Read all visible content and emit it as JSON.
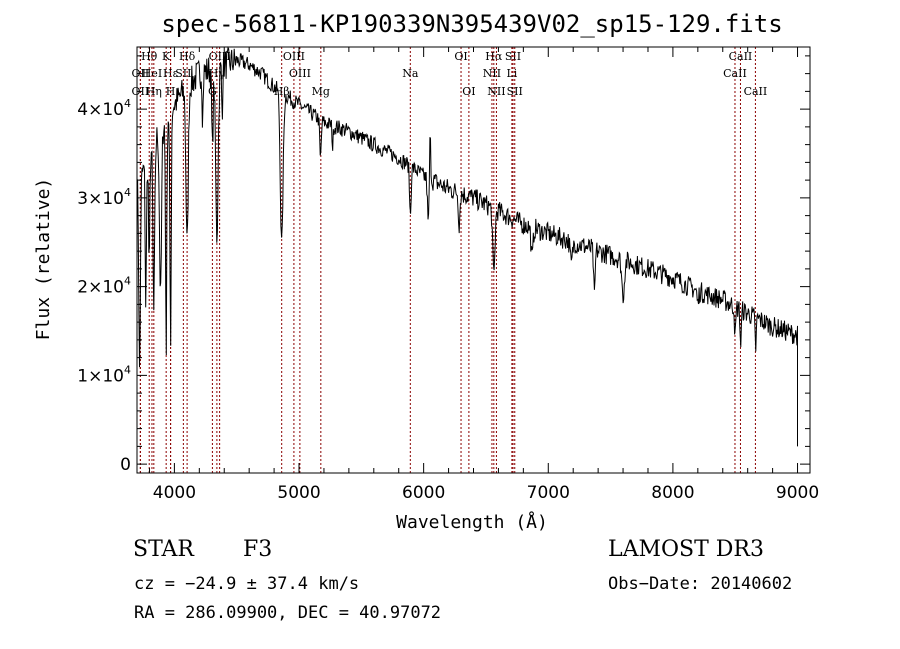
{
  "chart_data": {
    "type": "line",
    "title": "spec-56811-KP190339N395439V02_sp15-129.fits",
    "xlabel": "Wavelength (Å)",
    "ylabel": "Flux (relative)",
    "xlim": [
      3700,
      9100
    ],
    "ylim": [
      -1000,
      47000
    ],
    "x_ticks": [
      {
        "value": 4000,
        "label": "4000"
      },
      {
        "value": 5000,
        "label": "5000"
      },
      {
        "value": 6000,
        "label": "6000"
      },
      {
        "value": 7000,
        "label": "7000"
      },
      {
        "value": 8000,
        "label": "8000"
      },
      {
        "value": 9000,
        "label": "9000"
      }
    ],
    "y_ticks": [
      {
        "value": 0,
        "mant": "0",
        "exp": ""
      },
      {
        "value": 10000,
        "mant": "1×10",
        "exp": "4"
      },
      {
        "value": 20000,
        "mant": "2×10",
        "exp": "4"
      },
      {
        "value": 30000,
        "mant": "3×10",
        "exp": "4"
      },
      {
        "value": 40000,
        "mant": "4×10",
        "exp": "4"
      }
    ],
    "continuum": [
      [
        3700,
        31000
      ],
      [
        3800,
        35000
      ],
      [
        3900,
        38000
      ],
      [
        4000,
        40500
      ],
      [
        4100,
        42500
      ],
      [
        4200,
        44000
      ],
      [
        4300,
        44500
      ],
      [
        4400,
        45000
      ],
      [
        4500,
        45500
      ],
      [
        4600,
        45000
      ],
      [
        4700,
        44000
      ],
      [
        4800,
        42500
      ],
      [
        4900,
        41500
      ],
      [
        5000,
        40500
      ],
      [
        5200,
        38500
      ],
      [
        5400,
        37500
      ],
      [
        5600,
        36000
      ],
      [
        5800,
        34500
      ],
      [
        6000,
        32500
      ],
      [
        6200,
        31000
      ],
      [
        6400,
        30000
      ],
      [
        6600,
        28500
      ],
      [
        6800,
        27000
      ],
      [
        7000,
        26000
      ],
      [
        7200,
        25000
      ],
      [
        7400,
        24000
      ],
      [
        7600,
        23000
      ],
      [
        7800,
        22000
      ],
      [
        8000,
        21000
      ],
      [
        8200,
        19500
      ],
      [
        8400,
        18500
      ],
      [
        8600,
        17000
      ],
      [
        8800,
        15500
      ],
      [
        9000,
        14500
      ]
    ],
    "absorption_features": [
      {
        "center": 3721,
        "width": 6,
        "depth": 22000
      },
      {
        "center": 3771,
        "width": 5,
        "depth": 16000
      },
      {
        "center": 3798,
        "width": 5,
        "depth": 13000
      },
      {
        "center": 3835,
        "width": 7,
        "depth": 19000
      },
      {
        "center": 3889,
        "width": 8,
        "depth": 19000
      },
      {
        "center": 3934,
        "width": 5,
        "depth": 26000
      },
      {
        "center": 3969,
        "width": 5,
        "depth": 27000
      },
      {
        "center": 4102,
        "width": 9,
        "depth": 18000
      },
      {
        "center": 4227,
        "width": 4,
        "depth": 5000
      },
      {
        "center": 4305,
        "width": 6,
        "depth": 9000
      },
      {
        "center": 4341,
        "width": 10,
        "depth": 19000
      },
      {
        "center": 4383,
        "width": 4,
        "depth": 5000
      },
      {
        "center": 4861,
        "width": 11,
        "depth": 17000
      },
      {
        "center": 5172,
        "width": 6,
        "depth": 4500
      },
      {
        "center": 5270,
        "width": 4,
        "depth": 2500
      },
      {
        "center": 5893,
        "width": 6,
        "depth": 5500
      },
      {
        "center": 6040,
        "width": 8,
        "depth": 6500
      },
      {
        "center": 6285,
        "width": 6,
        "depth": 3500
      },
      {
        "center": 6563,
        "width": 9,
        "depth": 7500
      },
      {
        "center": 6870,
        "width": 8,
        "depth": 3500
      },
      {
        "center": 7185,
        "width": 9,
        "depth": 2500
      },
      {
        "center": 7370,
        "width": 6,
        "depth": 5500
      },
      {
        "center": 7600,
        "width": 10,
        "depth": 4000
      },
      {
        "center": 8200,
        "width": 6,
        "depth": 1500
      },
      {
        "center": 8500,
        "width": 5,
        "depth": 3500
      },
      {
        "center": 8544,
        "width": 5,
        "depth": 4000
      },
      {
        "center": 8664,
        "width": 5,
        "depth": 3500
      }
    ],
    "emission_features": [
      {
        "center": 6050,
        "width": 6,
        "height": 7000
      }
    ],
    "noise": {
      "seed": 7,
      "amplitude": 900
    },
    "series": [
      {
        "name": "flux",
        "x_range": [
          3700,
          9000
        ],
        "step": 5,
        "color": "#000000"
      }
    ],
    "spectral_lines": [
      {
        "name": "OII",
        "wavelength": 3727,
        "row": 2
      },
      {
        "name": "OII",
        "wavelength": 3727,
        "row": 1
      },
      {
        "name": "Hθ",
        "wavelength": 3798,
        "row": 0
      },
      {
        "name": "HeI",
        "wavelength": 3820,
        "row": 1
      },
      {
        "name": "Hη",
        "wavelength": 3835,
        "row": 2
      },
      {
        "name": "K",
        "wavelength": 3934,
        "row": 0
      },
      {
        "name": "Hε",
        "wavelength": 3970,
        "row": 1
      },
      {
        "name": "H",
        "wavelength": 3969,
        "row": 2
      },
      {
        "name": "Hδ",
        "wavelength": 4102,
        "row": 0
      },
      {
        "name": "SII",
        "wavelength": 4072,
        "row": 1
      },
      {
        "name": "OIII",
        "wavelength": 4363,
        "row": 0
      },
      {
        "name": "Hγ",
        "wavelength": 4341,
        "row": 1
      },
      {
        "name": "G",
        "wavelength": 4305,
        "row": 2
      },
      {
        "name": "OIII",
        "wavelength": 4959,
        "row": 0
      },
      {
        "name": "OIII",
        "wavelength": 5007,
        "row": 1
      },
      {
        "name": "Hβ",
        "wavelength": 4861,
        "row": 2
      },
      {
        "name": "Mg",
        "wavelength": 5175,
        "row": 2
      },
      {
        "name": "Na",
        "wavelength": 5893,
        "row": 1
      },
      {
        "name": "OI",
        "wavelength": 6300,
        "row": 0
      },
      {
        "name": "OI",
        "wavelength": 6363,
        "row": 2
      },
      {
        "name": "Hα",
        "wavelength": 6563,
        "row": 0
      },
      {
        "name": "NII",
        "wavelength": 6548,
        "row": 1
      },
      {
        "name": "NII",
        "wavelength": 6584,
        "row": 2
      },
      {
        "name": "SII",
        "wavelength": 6717,
        "row": 0
      },
      {
        "name": "Li",
        "wavelength": 6708,
        "row": 1
      },
      {
        "name": "SII",
        "wavelength": 6731,
        "row": 2
      },
      {
        "name": "CaII",
        "wavelength": 8542,
        "row": 0
      },
      {
        "name": "CaII",
        "wavelength": 8498,
        "row": 1
      },
      {
        "name": "CaII",
        "wavelength": 8662,
        "row": 2
      }
    ],
    "line_color": "#8b0000"
  },
  "info": {
    "object_class": "STAR",
    "subclass": "F3",
    "survey": "LAMOST DR3",
    "cz": "cz = −24.9 ± 37.4 km/s",
    "obs_date": "Obs−Date: 20140602",
    "coords": "RA = 286.09900, DEC =  40.97072"
  }
}
